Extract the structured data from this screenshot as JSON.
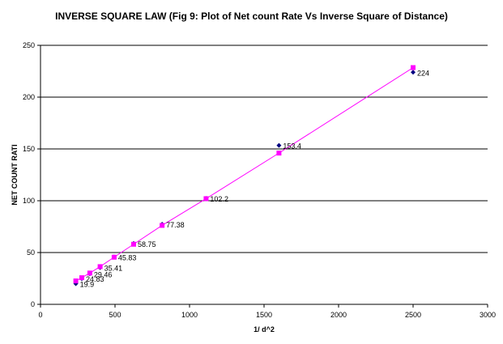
{
  "chart_data": {
    "type": "scatter",
    "title": "INVERSE SQUARE LAW (Fig 9: Plot of Net count Rate Vs Inverse Square of Distance)",
    "xlabel": "1/ d^2",
    "ylabel": "NET COUNT RATI",
    "xlim": [
      0,
      3000
    ],
    "ylim": [
      0,
      250
    ],
    "x_ticks": [
      0,
      500,
      1000,
      1500,
      2000,
      2500,
      3000
    ],
    "y_ticks": [
      0,
      50,
      100,
      150,
      200,
      250
    ],
    "grid": "horizontal",
    "legend": "none",
    "series": [
      {
        "marker": "diamond",
        "color": "#000080",
        "x": [
          237,
          277,
          331,
          400,
          494,
          625,
          816,
          1111,
          1600,
          2500
        ],
        "y": [
          19.9,
          24.83,
          29.46,
          35.41,
          45.83,
          58.75,
          77.38,
          102.2,
          153.4,
          224
        ],
        "labels": [
          "19.9",
          "24.83",
          "29.46",
          "35.41",
          "45.83",
          "58.75",
          "77.38",
          "102.2",
          "153.4",
          "224"
        ]
      },
      {
        "marker": "square",
        "color": "#ff00ff",
        "line": true,
        "x": [
          237,
          277,
          331,
          400,
          494,
          625,
          816,
          1111,
          1600,
          2500
        ],
        "y": [
          22.6,
          25.7,
          30.2,
          36.4,
          45.5,
          58.0,
          76.2,
          102.0,
          146.0,
          228.5
        ]
      }
    ]
  }
}
